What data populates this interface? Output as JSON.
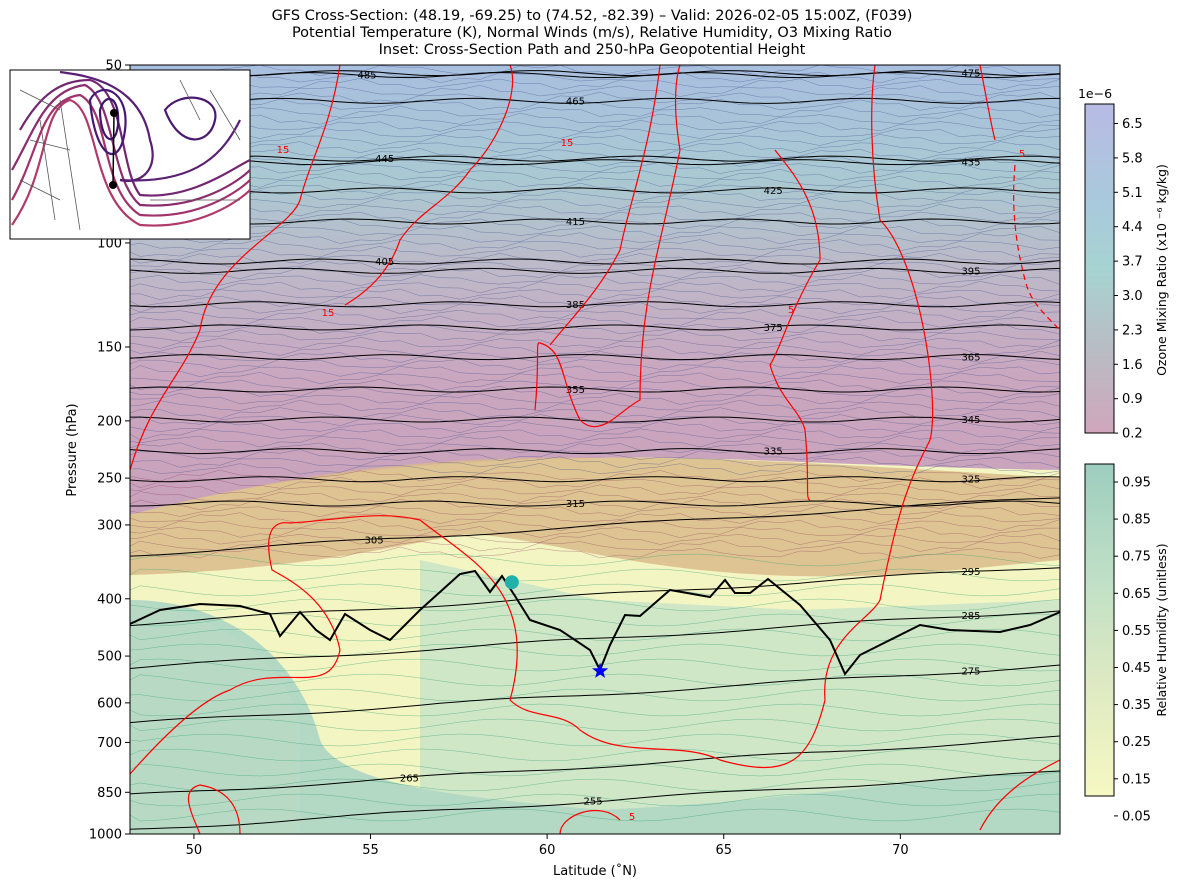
{
  "chart_data": {
    "type": "heatmap",
    "title": [
      "GFS Cross-Section: (48.19, -69.25) to (74.52, -82.39) – Valid: 2026-02-05 15:00Z, (F039)",
      "Potential Temperature (K), Normal Winds (m/s), Relative Humidity, O3 Mixing Ratio",
      "Inset: Cross-Section Path and 250-hPa Geopotential Height"
    ],
    "xlabel": "Latitude (˚N)",
    "ylabel": "Pressure (hPa)",
    "xlim": [
      48.19,
      74.52
    ],
    "ylim": [
      1000,
      50
    ],
    "yscale": "log",
    "xticks": [
      "50",
      "55",
      "60",
      "65",
      "70"
    ],
    "xtick_values": [
      50,
      55,
      60,
      65,
      70
    ],
    "yticks": [
      "50",
      "100",
      "150",
      "200",
      "250",
      "300",
      "400",
      "500",
      "600",
      "700",
      "850",
      "1000"
    ],
    "ytick_values": [
      50,
      100,
      150,
      200,
      250,
      300,
      400,
      500,
      600,
      700,
      850,
      1000
    ],
    "isentrope_labels": [
      {
        "theta": "485",
        "lat": 54.9,
        "p": 52
      },
      {
        "theta": "475",
        "lat": 72.0,
        "p": 51.6
      },
      {
        "theta": "465",
        "lat": 60.8,
        "p": 57.5
      },
      {
        "theta": "445",
        "lat": 55.4,
        "p": 72
      },
      {
        "theta": "435",
        "lat": 72.0,
        "p": 73
      },
      {
        "theta": "425",
        "lat": 66.4,
        "p": 81.5
      },
      {
        "theta": "415",
        "lat": 60.8,
        "p": 92
      },
      {
        "theta": "405",
        "lat": 55.4,
        "p": 107.5
      },
      {
        "theta": "395",
        "lat": 72.0,
        "p": 111.5
      },
      {
        "theta": "385",
        "lat": 60.8,
        "p": 127
      },
      {
        "theta": "375",
        "lat": 66.4,
        "p": 139
      },
      {
        "theta": "365",
        "lat": 72.0,
        "p": 156
      },
      {
        "theta": "355",
        "lat": 60.8,
        "p": 177
      },
      {
        "theta": "345",
        "lat": 72.0,
        "p": 199
      },
      {
        "theta": "335",
        "lat": 66.4,
        "p": 225
      },
      {
        "theta": "325",
        "lat": 72.0,
        "p": 251
      },
      {
        "theta": "315",
        "lat": 60.8,
        "p": 276
      },
      {
        "theta": "305",
        "lat": 55.1,
        "p": 318
      },
      {
        "theta": "295",
        "lat": 72.0,
        "p": 360
      },
      {
        "theta": "285",
        "lat": 72.0,
        "p": 427
      },
      {
        "theta": "275",
        "lat": 72.0,
        "p": 530
      },
      {
        "theta": "265",
        "lat": 56.1,
        "p": 804
      },
      {
        "theta": "255",
        "lat": 61.3,
        "p": 880
      }
    ],
    "wind_labels": [
      "15",
      "15",
      "15",
      "5",
      "5",
      "5"
    ],
    "markers": [
      {
        "name": "circle",
        "lat": 59.0,
        "p": 375,
        "color": "#20b2aa"
      },
      {
        "name": "star",
        "lat": 61.5,
        "p": 530,
        "color": "#0000ff"
      }
    ],
    "colorbars": [
      {
        "label": "Ozone Mixing Ratio (x10 ⁻⁶ kg/kg)",
        "offset": "1e−6",
        "ticks": [
          "6.5",
          "5.8",
          "5.1",
          "4.4",
          "3.7",
          "3.0",
          "2.3",
          "1.6",
          "0.9",
          "0.2"
        ],
        "colors": [
          "#b8bbe4",
          "#a9c9dc",
          "#a7d3d2",
          "#b9bcc4",
          "#d0a6bc"
        ]
      },
      {
        "label": "Relative Humidity (unitless)",
        "ticks": [
          "0.95",
          "0.85",
          "0.75",
          "0.65",
          "0.55",
          "0.45",
          "0.35",
          "0.25",
          "0.15",
          "0.05"
        ],
        "colors": [
          "#9dcdbf",
          "#c0e0c6",
          "#dde9c3",
          "#f6f8c2"
        ]
      }
    ],
    "colors": {
      "isentrope": "#000000",
      "wind": "#ff0000",
      "tropopause": "#000000"
    }
  }
}
